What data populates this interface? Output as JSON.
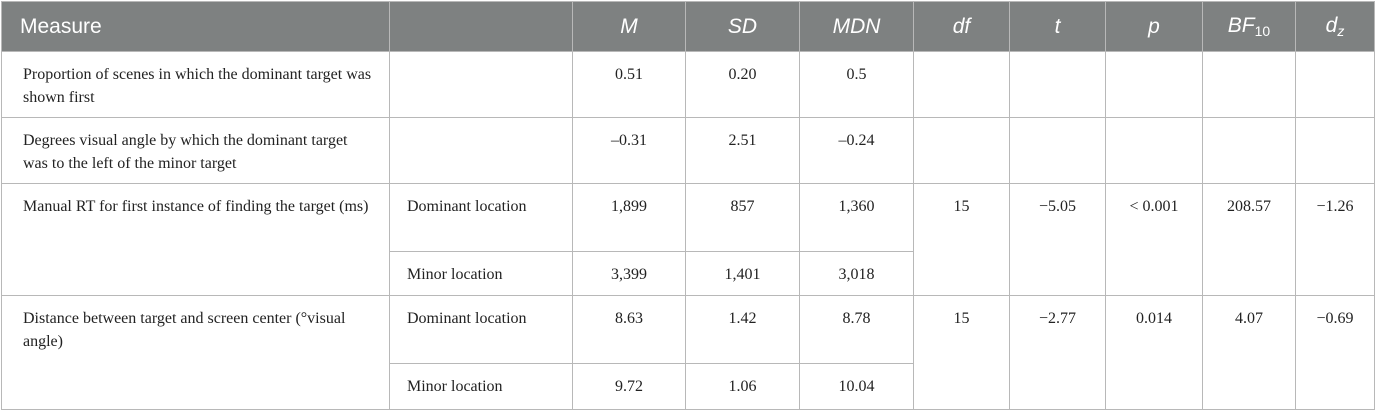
{
  "table": {
    "headers": {
      "measure": "Measure",
      "location": "",
      "m": "M",
      "sd": "SD",
      "mdn": "MDN",
      "df": "df",
      "t": "t",
      "p": "p",
      "bf_main": "BF",
      "bf_sub": "10",
      "dz_main": "d",
      "dz_sub": "z"
    },
    "rows": [
      {
        "measure": "Proportion of scenes in which the dominant target was shown first",
        "location": "",
        "m": "0.51",
        "sd": "0.20",
        "mdn": "0.5",
        "df": "",
        "t": "",
        "p": "",
        "bf": "",
        "dz": ""
      },
      {
        "measure": "Degrees visual angle by which the dominant target was to the left of the minor target",
        "location": "",
        "m": "–0.31",
        "sd": "2.51",
        "mdn": "–0.24",
        "df": "",
        "t": "",
        "p": "",
        "bf": "",
        "dz": ""
      },
      {
        "measure": "Manual RT for first instance of finding the target (ms)",
        "location": "Dominant location",
        "m": "1,899",
        "sd": "857",
        "mdn": "1,360",
        "df": "15",
        "t": "−5.05",
        "p": "< 0.001",
        "bf": "208.57",
        "dz": "−1.26"
      },
      {
        "location": "Minor location",
        "m": "3,399",
        "sd": "1,401",
        "mdn": "3,018"
      },
      {
        "measure": "Distance between target and screen center (°visual angle)",
        "location": "Dominant location",
        "m": "8.63",
        "sd": "1.42",
        "mdn": "8.78",
        "df": "15",
        "t": "−2.77",
        "p": "0.014",
        "bf": "4.07",
        "dz": "−0.69"
      },
      {
        "location": "Minor location",
        "m": "9.72",
        "sd": "1.06",
        "mdn": "10.04"
      }
    ]
  }
}
